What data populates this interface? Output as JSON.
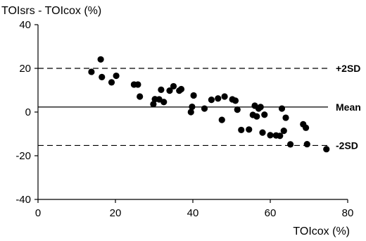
{
  "chart_data": {
    "type": "scatter",
    "ylabel": "TOIsrs - TOIcox (%)",
    "xlabel": "TOIcox (%)",
    "xlim": [
      0,
      80
    ],
    "ylim": [
      -40,
      40
    ],
    "xticks": [
      0,
      20,
      40,
      60,
      80
    ],
    "yticks": [
      -40,
      -20,
      0,
      20,
      40
    ],
    "grid": false,
    "reference_lines": [
      {
        "label": "+2SD",
        "y": 20,
        "style": "dashed"
      },
      {
        "label": "Mean",
        "y": 2.3,
        "style": "solid"
      },
      {
        "label": "-2SD",
        "y": -15.3,
        "style": "dashed"
      }
    ],
    "points": [
      {
        "x": 13.8,
        "y": 18.4
      },
      {
        "x": 16.2,
        "y": 24.1
      },
      {
        "x": 16.5,
        "y": 16.0
      },
      {
        "x": 19.0,
        "y": 13.6
      },
      {
        "x": 20.2,
        "y": 16.6
      },
      {
        "x": 24.8,
        "y": 12.6
      },
      {
        "x": 25.8,
        "y": 12.6
      },
      {
        "x": 26.3,
        "y": 7.1
      },
      {
        "x": 29.8,
        "y": 3.6
      },
      {
        "x": 30.2,
        "y": 5.9
      },
      {
        "x": 31.3,
        "y": 5.8
      },
      {
        "x": 31.8,
        "y": 10.2
      },
      {
        "x": 32.5,
        "y": 4.6
      },
      {
        "x": 34.0,
        "y": 9.8
      },
      {
        "x": 35.0,
        "y": 11.8
      },
      {
        "x": 36.5,
        "y": 9.8
      },
      {
        "x": 37.0,
        "y": 10.5
      },
      {
        "x": 39.5,
        "y": 0.0
      },
      {
        "x": 39.8,
        "y": 2.4
      },
      {
        "x": 40.2,
        "y": 7.6
      },
      {
        "x": 43.0,
        "y": 1.6
      },
      {
        "x": 44.8,
        "y": 5.6
      },
      {
        "x": 46.5,
        "y": 6.2
      },
      {
        "x": 47.5,
        "y": -3.6
      },
      {
        "x": 48.2,
        "y": 7.1
      },
      {
        "x": 50.2,
        "y": 5.8
      },
      {
        "x": 51.0,
        "y": 5.2
      },
      {
        "x": 51.5,
        "y": 1.1
      },
      {
        "x": 52.5,
        "y": -8.2
      },
      {
        "x": 54.5,
        "y": -8.0
      },
      {
        "x": 55.5,
        "y": -1.3
      },
      {
        "x": 56.0,
        "y": 2.9
      },
      {
        "x": 56.5,
        "y": -2.0
      },
      {
        "x": 57.0,
        "y": 1.6
      },
      {
        "x": 57.5,
        "y": 2.3
      },
      {
        "x": 58.0,
        "y": -9.4
      },
      {
        "x": 58.5,
        "y": -1.2
      },
      {
        "x": 60.0,
        "y": -10.6
      },
      {
        "x": 61.5,
        "y": -10.7
      },
      {
        "x": 62.5,
        "y": -10.9
      },
      {
        "x": 63.0,
        "y": 1.6
      },
      {
        "x": 63.5,
        "y": -8.6
      },
      {
        "x": 64.0,
        "y": -2.6
      },
      {
        "x": 65.2,
        "y": -14.8
      },
      {
        "x": 68.5,
        "y": -5.6
      },
      {
        "x": 69.2,
        "y": -7.2
      },
      {
        "x": 69.5,
        "y": -14.7
      },
      {
        "x": 74.5,
        "y": -17.0
      }
    ]
  }
}
